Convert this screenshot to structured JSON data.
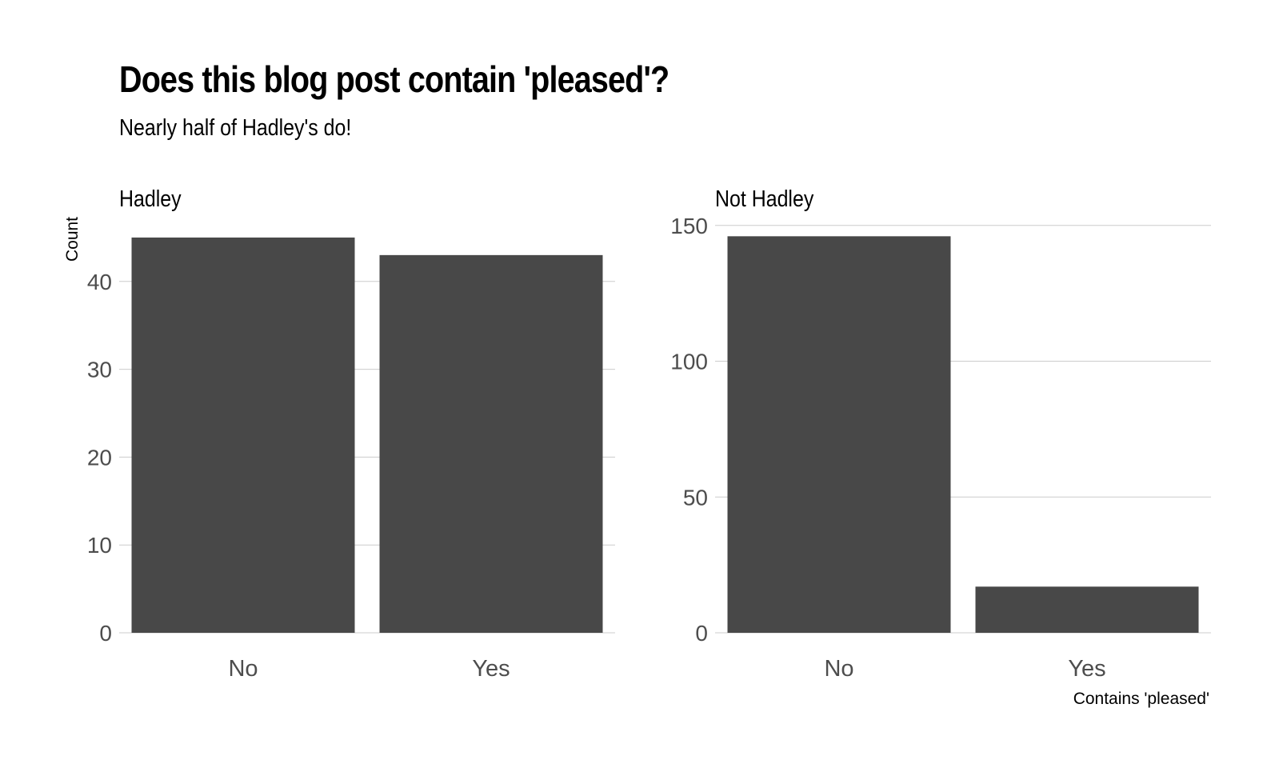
{
  "title": "Does this blog post contain 'pleased'?",
  "subtitle": "Nearly half of Hadley's do!",
  "ylabel": "Count",
  "xlabel": "Contains 'pleased'",
  "colors": {
    "bar": "#484848",
    "grid": "#cccccc",
    "tick_text": "#4d4d4d"
  },
  "chart_data": [
    {
      "type": "bar",
      "panel_title": "Hadley",
      "categories": [
        "No",
        "Yes"
      ],
      "values": [
        45,
        43
      ],
      "ylim": [
        0,
        45
      ],
      "yticks": [
        0,
        10,
        20,
        30,
        40
      ],
      "grid": true
    },
    {
      "type": "bar",
      "panel_title": "Not Hadley",
      "categories": [
        "No",
        "Yes"
      ],
      "values": [
        146,
        17
      ],
      "ylim": [
        0,
        150
      ],
      "yticks": [
        0,
        50,
        100,
        150
      ],
      "grid": true
    }
  ]
}
